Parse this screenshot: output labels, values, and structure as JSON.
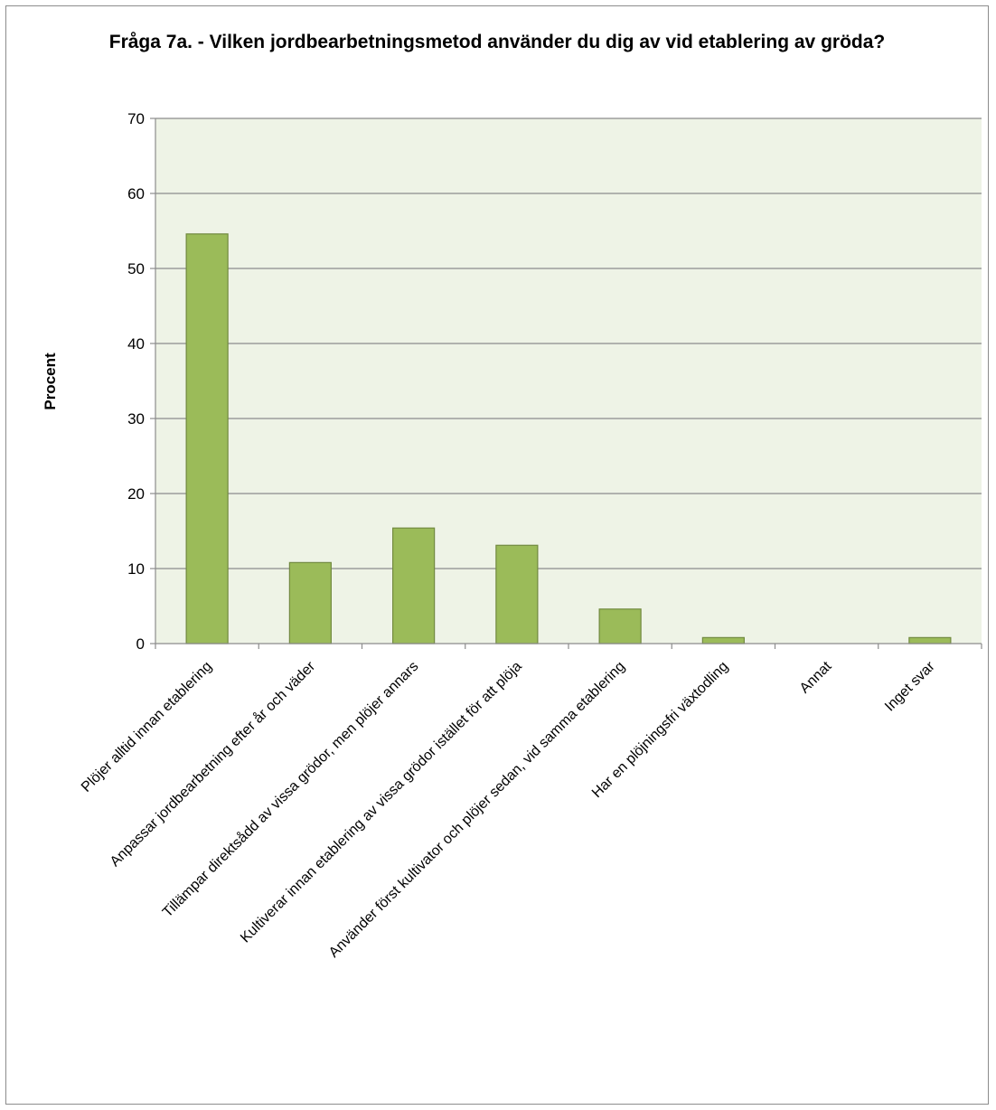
{
  "chart_data": {
    "type": "bar",
    "title": "Fråga 7a. - Vilken jordbearbetningsmetod använder du dig av vid etablering av gröda?",
    "xlabel": "",
    "ylabel": "Procent",
    "ylim": [
      0,
      70
    ],
    "yticks": [
      0,
      10,
      20,
      30,
      40,
      50,
      60,
      70
    ],
    "grid": true,
    "legend": "none",
    "categories": [
      "Plöjer alltid innan etablering",
      "Anpassar jordbearbetning efter år och väder",
      "Tillämpar direktsådd av vissa grödor, men plöjer annars",
      "Kultiverar innan etablering av vissa grödor istället för att plöja",
      "Använder först kultivator och plöjer sedan, vid samma etablering",
      "Har en plöjningsfri växtodling",
      "Annat",
      "Inget svar"
    ],
    "values": [
      54.6,
      10.8,
      15.4,
      13.1,
      4.6,
      0.8,
      0.0,
      0.8
    ],
    "colors": {
      "bar_fill": "#9bbb59",
      "bar_stroke": "#71893f",
      "plot_background": "#eef3e6",
      "gridline": "#8c8c8c"
    }
  }
}
